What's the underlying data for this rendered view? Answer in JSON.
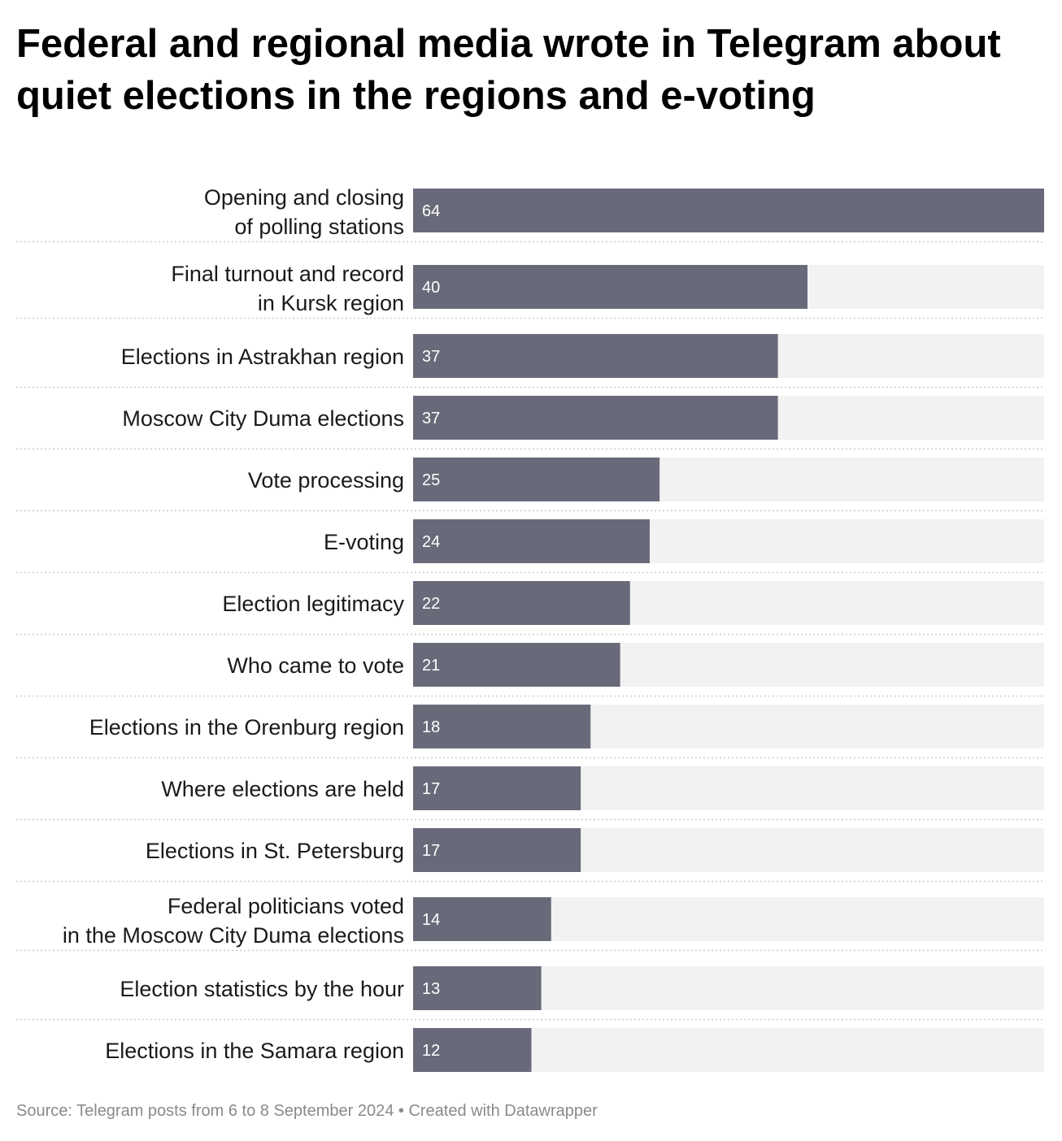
{
  "title": "Federal and regional media wrote in Telegram about quiet elections in the regions and e-voting",
  "source": "Source: Telegram posts from 6 to 8 September 2024 • Created with Datawrapper",
  "colors": {
    "bar": "#696a79",
    "track": "#f2f2f2",
    "separator": "#c8c8c8"
  },
  "chart_data": {
    "type": "bar",
    "orientation": "horizontal",
    "xlim": [
      0,
      64
    ],
    "grid": false,
    "categories": [
      [
        "Opening and closing",
        "of polling stations"
      ],
      [
        "Final turnout and record",
        "in Kursk region"
      ],
      [
        "Elections in Astrakhan region"
      ],
      [
        "Moscow City Duma elections"
      ],
      [
        "Vote processing"
      ],
      [
        "E-voting"
      ],
      [
        "Election legitimacy"
      ],
      [
        "Who came to vote"
      ],
      [
        "Elections in the Orenburg region"
      ],
      [
        "Where elections are held"
      ],
      [
        "Elections in St. Petersburg"
      ],
      [
        "Federal politicians voted",
        "in the Moscow City Duma elections"
      ],
      [
        "Election statistics by the hour"
      ],
      [
        "Elections in the Samara region"
      ]
    ],
    "values": [
      64,
      40,
      37,
      37,
      25,
      24,
      22,
      21,
      18,
      17,
      17,
      14,
      13,
      12
    ]
  }
}
